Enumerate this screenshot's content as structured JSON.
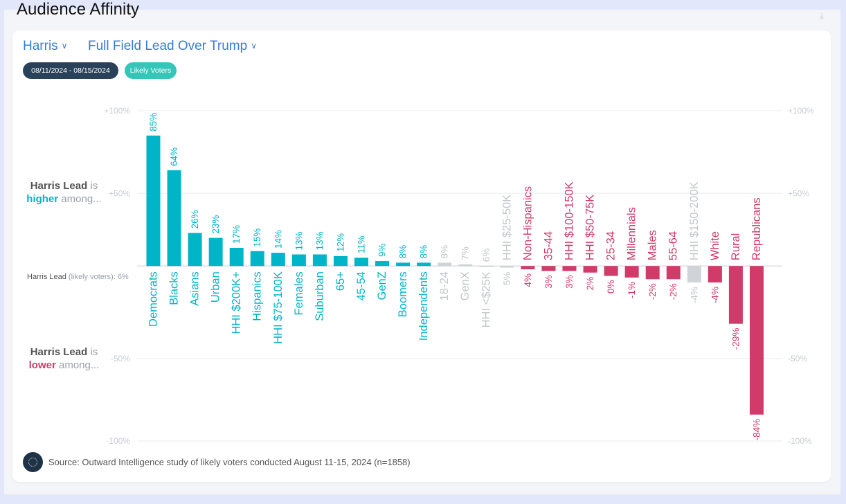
{
  "header": {
    "title": "Audience Affinity"
  },
  "filters": {
    "candidate": "Harris",
    "metric": "Full Field Lead Over Trump"
  },
  "tags": {
    "date_range": "08/11/2024 - 08/15/2024",
    "population": "Likely Voters"
  },
  "side_labels": {
    "higher_line1_strong": "Harris Lead",
    "higher_line1_rest": " is",
    "higher_line2_strong": "higher",
    "higher_line2_rest": " among...",
    "lower_line1_strong": "Harris Lead",
    "lower_line1_rest": " is",
    "lower_line2_strong": "lower",
    "lower_line2_rest": " among..."
  },
  "baseline": {
    "label_strong": "Harris Lead",
    "label_rest": " (likely voters): 6%"
  },
  "source": "Source: Outward Intelligence study of likely voters conducted August 11-15, 2024 (n=1858)",
  "colors": {
    "higher": "#00b5c8",
    "lower": "#d03b6a",
    "neutral": "#d0d3d8",
    "neutral_text": "#c3c6cc",
    "gridline": "#eceef2",
    "tick": "#c8ccd3"
  },
  "icons": {
    "download": "download-icon",
    "logo": "outward-logo-icon"
  },
  "chart_data": {
    "type": "bar",
    "baseline": 6,
    "ylim": [
      -100,
      100
    ],
    "yticks": [
      "+100%",
      "+50%",
      "-50%",
      "-100%"
    ],
    "ytick_values": [
      100,
      50,
      -50,
      -100
    ],
    "categories": [
      "Democrats",
      "Blacks",
      "Asians",
      "Urban",
      "HHI $200K+",
      "Hispanics",
      "HHI $75-100K",
      "Females",
      "Suburban",
      "65+",
      "45-54",
      "GenZ",
      "Boomers",
      "Independents",
      "18-24",
      "GenX",
      "HHI <$25K",
      "HHI $25-50K",
      "Non-Hispanics",
      "35-44",
      "HHI $100-150K",
      "HHI $50-75K",
      "25-34",
      "Millennials",
      "Males",
      "55-64",
      "HHI $150-200K",
      "White",
      "Rural",
      "Republicans"
    ],
    "values": [
      85,
      64,
      26,
      23,
      17,
      15,
      14,
      13,
      13,
      12,
      11,
      9,
      8,
      8,
      8,
      7,
      6,
      5,
      4,
      3,
      3,
      2,
      0,
      -1,
      -2,
      -2,
      -4,
      -4,
      -29,
      -84
    ],
    "value_labels": [
      "85%",
      "64%",
      "26%",
      "23%",
      "17%",
      "15%",
      "14%",
      "13%",
      "13%",
      "12%",
      "11%",
      "9%",
      "8%",
      "8%",
      "8%",
      "7%",
      "6%",
      "5%",
      "4%",
      "3%",
      "3%",
      "2%",
      "0%",
      "-1%",
      "-2%",
      "-2%",
      "-4%",
      "-4%",
      "-29%",
      "-84%"
    ],
    "group": [
      "higher",
      "higher",
      "higher",
      "higher",
      "higher",
      "higher",
      "higher",
      "higher",
      "higher",
      "higher",
      "higher",
      "higher",
      "higher",
      "higher",
      "neutral",
      "neutral",
      "neutral",
      "neutral",
      "lower",
      "lower",
      "lower",
      "lower",
      "lower",
      "lower",
      "lower",
      "lower",
      "neutral",
      "lower",
      "lower",
      "lower"
    ]
  }
}
